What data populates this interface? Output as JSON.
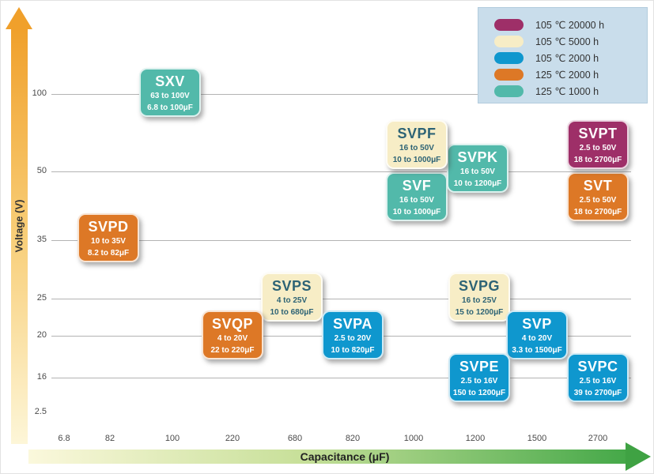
{
  "chart_data": {
    "type": "scatter",
    "title": "",
    "xlabel": "Capacitance (μF)",
    "ylabel": "Voltage (V)",
    "grid": "horizontal-only",
    "legend_position": "top-right",
    "y_ticks": [
      {
        "label": "100",
        "py": 118,
        "line": true
      },
      {
        "label": "50",
        "py": 216,
        "line": true
      },
      {
        "label": "35",
        "py": 303,
        "line": true
      },
      {
        "label": "25",
        "py": 377,
        "line": true
      },
      {
        "label": "20",
        "py": 424,
        "line": true
      },
      {
        "label": "16",
        "py": 477,
        "line": true
      },
      {
        "label": "2.5",
        "py": 521,
        "line": false
      }
    ],
    "x_ticks": [
      {
        "label": "6.8",
        "px": 80
      },
      {
        "label": "82",
        "px": 138
      },
      {
        "label": "100",
        "px": 217
      },
      {
        "label": "220",
        "px": 293
      },
      {
        "label": "680",
        "px": 372
      },
      {
        "label": "820",
        "px": 445
      },
      {
        "label": "1000",
        "px": 522
      },
      {
        "label": "1200",
        "px": 600
      },
      {
        "label": "1500",
        "px": 678
      },
      {
        "label": "2700",
        "px": 755
      }
    ],
    "legend": [
      {
        "label": "105 ℃ 20000 h",
        "color": "#9E2F68"
      },
      {
        "label": "105 ℃ 5000 h",
        "color": "#F7EDC6"
      },
      {
        "label": "105 ℃ 2000 h",
        "color": "#0F97CE"
      },
      {
        "label": "125 ℃ 2000 h",
        "color": "#DD7826"
      },
      {
        "label": "125 ℃ 1000 h",
        "color": "#52B9AA"
      }
    ],
    "series": [
      {
        "name": "SXV",
        "voltage_range": "63 to 100V",
        "capacitance_range": "6.8 to 100μF",
        "rating": "125 ℃ 1000 h",
        "color": "#52B9AA",
        "text_color": "#FFFFFF",
        "px": [
          214,
          116
        ]
      },
      {
        "name": "SVPD",
        "voltage_range": "10 to 35V",
        "capacitance_range": "8.2 to 82μF",
        "rating": "125 ℃ 2000 h",
        "color": "#DD7826",
        "text_color": "#FFFFFF",
        "px": [
          136,
          300
        ]
      },
      {
        "name": "SVF",
        "voltage_range": "16 to 50V",
        "capacitance_range": "10 to 1000μF",
        "rating": "125 ℃ 1000 h",
        "color": "#52B9AA",
        "text_color": "#FFFFFF",
        "px": [
          526,
          248
        ]
      },
      {
        "name": "SVPK",
        "voltage_range": "16 to 50V",
        "capacitance_range": "10 to 1200μF",
        "rating": "125 ℃ 1000 h",
        "color": "#52B9AA",
        "text_color": "#FFFFFF",
        "px": [
          603,
          212
        ]
      },
      {
        "name": "SVPF",
        "voltage_range": "16 to 50V",
        "capacitance_range": "10 to 1000μF",
        "rating": "105 ℃ 5000 h",
        "color": "#F7EDC6",
        "text_color": "#2D6375",
        "px": [
          526,
          182
        ]
      },
      {
        "name": "SVT",
        "voltage_range": "2.5 to 50V",
        "capacitance_range": "18 to 2700μF",
        "rating": "125 ℃ 2000 h",
        "color": "#DD7826",
        "text_color": "#FFFFFF",
        "px": [
          755,
          248
        ]
      },
      {
        "name": "SVPT",
        "voltage_range": "2.5 to 50V",
        "capacitance_range": "18 to 2700μF",
        "rating": "105 ℃ 20000 h",
        "color": "#9E2F68",
        "text_color": "#FFFFFF",
        "px": [
          755,
          182
        ]
      },
      {
        "name": "SVPS",
        "voltage_range": "4 to 25V",
        "capacitance_range": "10 to 680μF",
        "rating": "105 ℃ 5000 h",
        "color": "#F7EDC6",
        "text_color": "#2D6375",
        "px": [
          368,
          375
        ]
      },
      {
        "name": "SVPG",
        "voltage_range": "16 to 25V",
        "capacitance_range": "15 to 1200μF",
        "rating": "105 ℃ 5000 h",
        "color": "#F7EDC6",
        "text_color": "#2D6375",
        "px": [
          605,
          375
        ]
      },
      {
        "name": "SVQP",
        "voltage_range": "4 to 20V",
        "capacitance_range": "22 to 220μF",
        "rating": "125 ℃ 2000 h",
        "color": "#DD7826",
        "text_color": "#FFFFFF",
        "px": [
          293,
          423
        ]
      },
      {
        "name": "SVPA",
        "voltage_range": "2.5 to 20V",
        "capacitance_range": "10 to 820μF",
        "rating": "105 ℃ 2000 h",
        "color": "#0F97CE",
        "text_color": "#FFFFFF",
        "px": [
          445,
          423
        ]
      },
      {
        "name": "SVP",
        "voltage_range": "4 to 20V",
        "capacitance_range": "3.3 to 1500μF",
        "rating": "105 ℃ 2000 h",
        "color": "#0F97CE",
        "text_color": "#FFFFFF",
        "px": [
          678,
          423
        ]
      },
      {
        "name": "SVPE",
        "voltage_range": "2.5 to 16V",
        "capacitance_range": "150 to 1200μF",
        "rating": "105 ℃ 2000 h",
        "color": "#0F97CE",
        "text_color": "#FFFFFF",
        "px": [
          605,
          477
        ]
      },
      {
        "name": "SVPC",
        "voltage_range": "2.5 to 16V",
        "capacitance_range": "39 to 2700μF",
        "rating": "105 ℃ 2000 h",
        "color": "#0F97CE",
        "text_color": "#FFFFFF",
        "px": [
          755,
          477
        ]
      }
    ]
  }
}
